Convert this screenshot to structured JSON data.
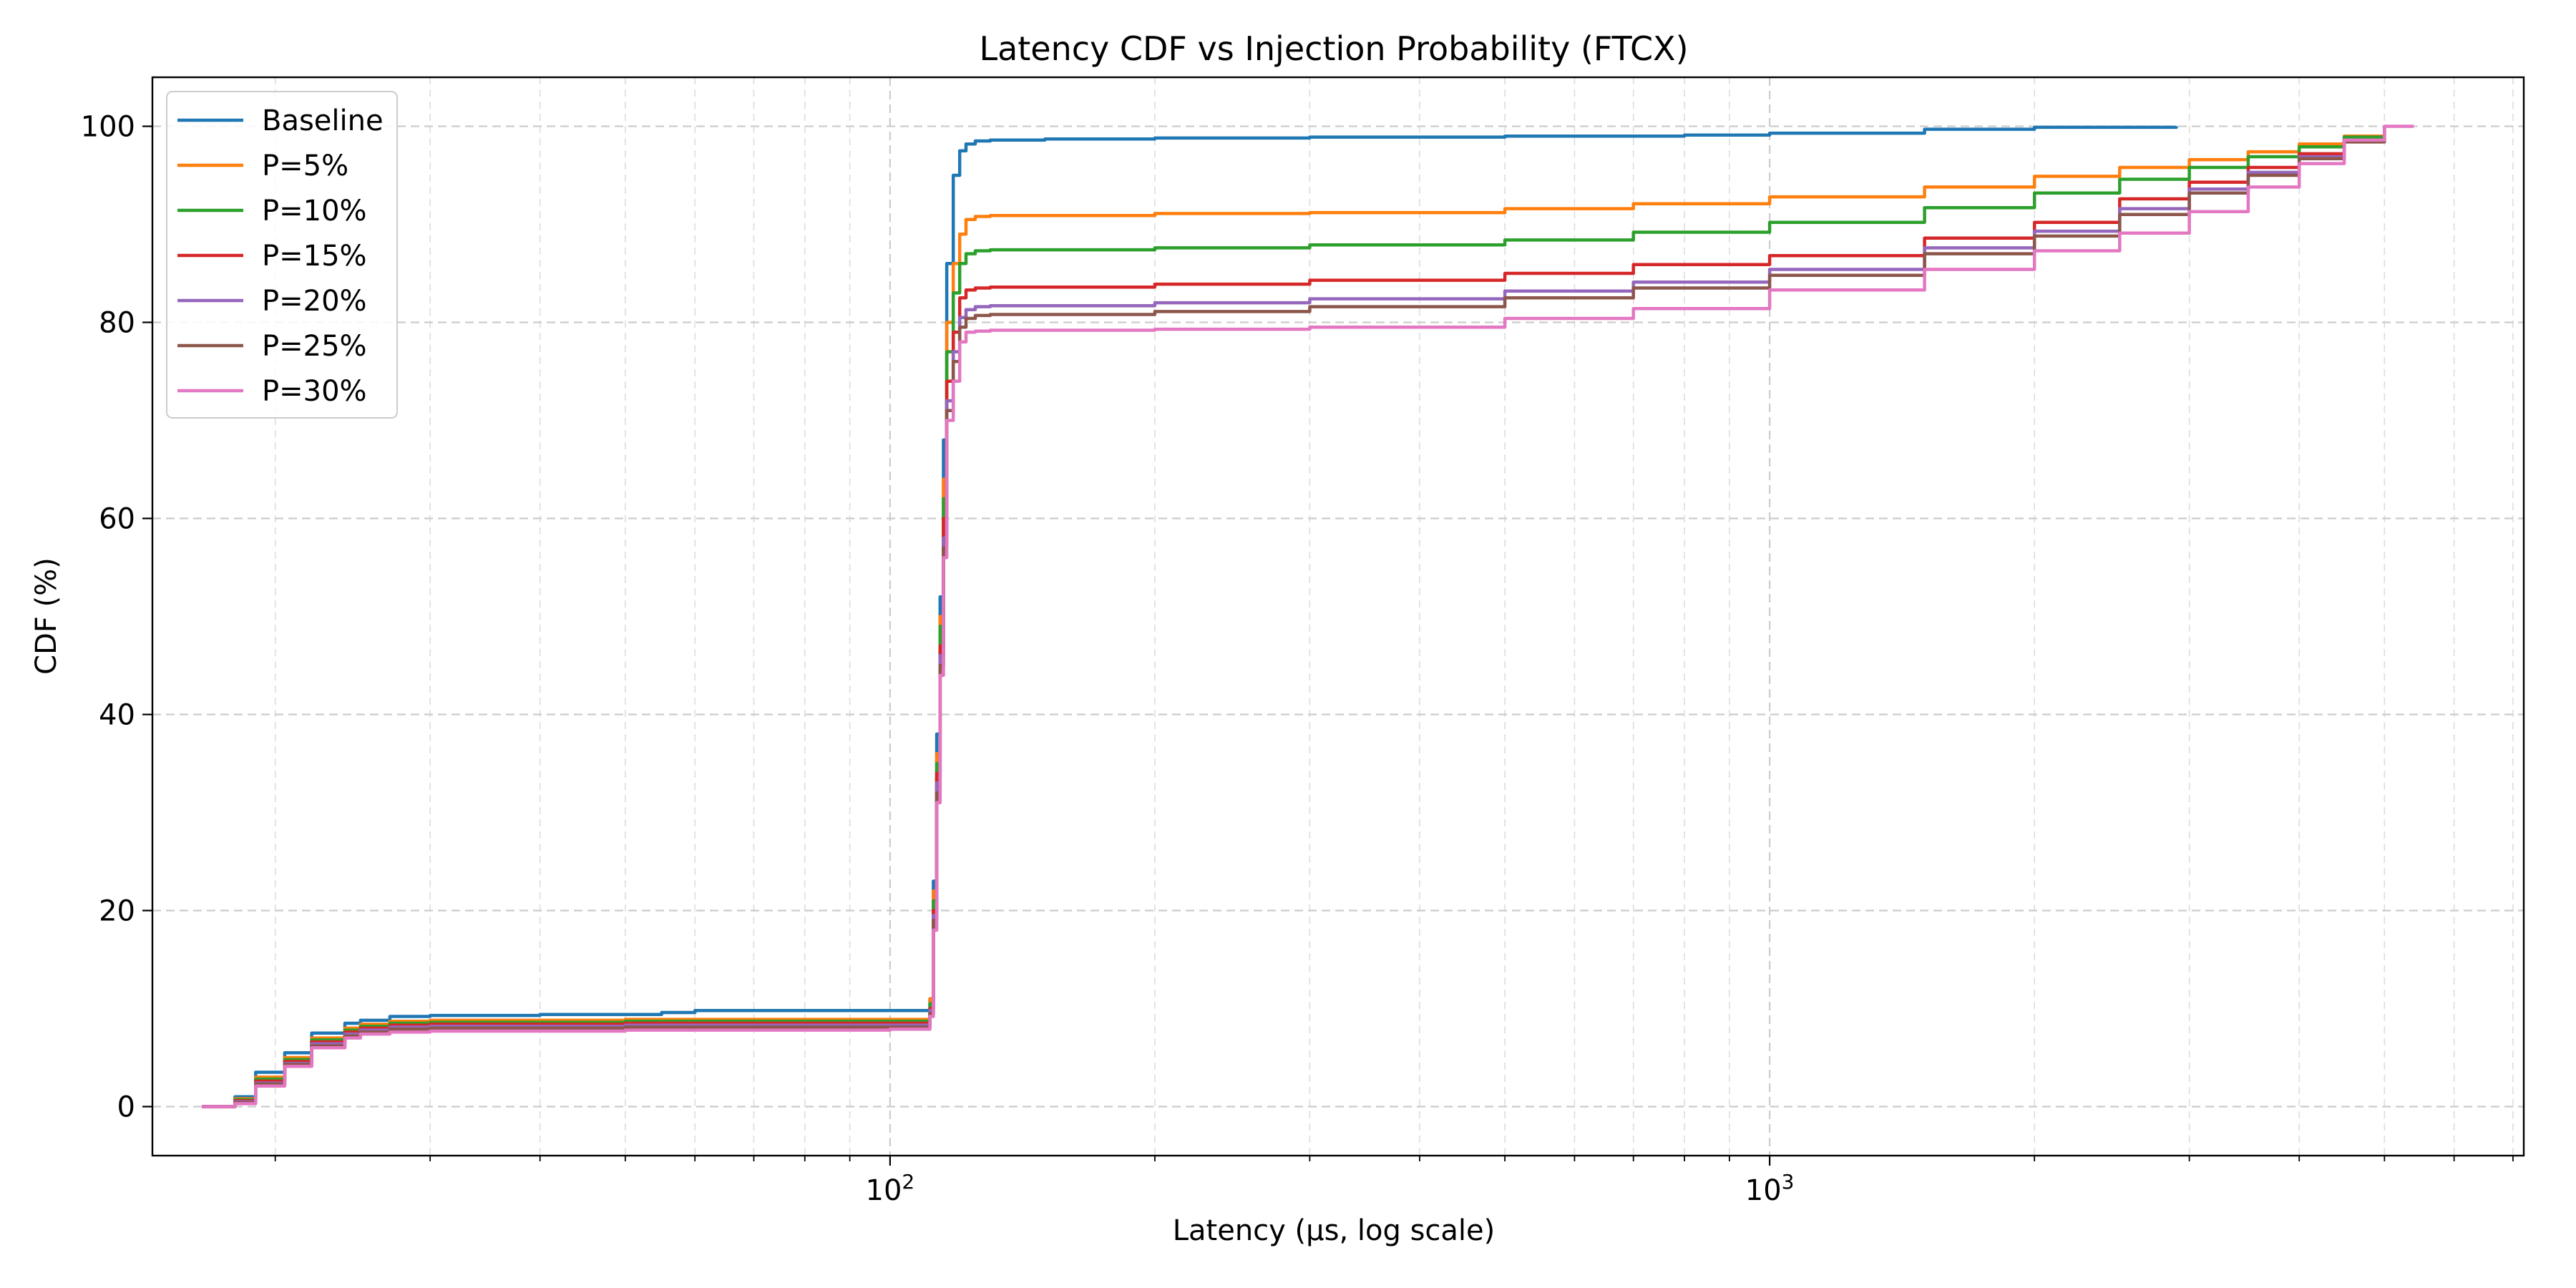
{
  "chart_data": {
    "type": "line",
    "title": "Latency CDF vs Injection Probability (FTCX)",
    "xlabel": "Latency (µs, log scale)",
    "ylabel": "CDF (%)",
    "x_scale": "log",
    "xlim": [
      14.5,
      7200
    ],
    "ylim": [
      -5,
      105
    ],
    "x_ticks": [
      {
        "value": 100,
        "base": "10",
        "exp": "2"
      },
      {
        "value": 1000,
        "base": "10",
        "exp": "3"
      }
    ],
    "y_ticks": [
      0,
      20,
      40,
      60,
      80,
      100
    ],
    "grid": "both (major and minor), dashed",
    "legend_position": "top-left",
    "series": [
      {
        "name": "Baseline",
        "color": "#1f77b4",
        "x": [
          16.5,
          17.5,
          18,
          18.5,
          19,
          20,
          20.5,
          21.5,
          22,
          23,
          24,
          25,
          27,
          30,
          40,
          55,
          60,
          100,
          110,
          111,
          112,
          113,
          114,
          115,
          116,
          118,
          120,
          122,
          125,
          130,
          150,
          200,
          300,
          500,
          800,
          1000,
          1500,
          2000,
          2900
        ],
        "y": [
          0,
          0,
          1,
          1,
          3.5,
          3.5,
          5.5,
          5.5,
          7.5,
          7.5,
          8.5,
          8.8,
          9.2,
          9.3,
          9.4,
          9.6,
          9.8,
          9.8,
          9.8,
          11,
          23,
          38,
          52,
          68,
          86,
          95,
          97.5,
          98.2,
          98.5,
          98.6,
          98.7,
          98.8,
          98.9,
          99,
          99.1,
          99.3,
          99.7,
          99.9,
          100
        ]
      },
      {
        "name": "P=5%",
        "color": "#ff7f0e",
        "x": [
          16.5,
          17.5,
          18,
          18.5,
          19,
          20,
          20.5,
          21.5,
          22,
          23,
          24,
          25,
          27,
          30,
          50,
          100,
          110,
          111,
          112,
          113,
          114,
          115,
          116,
          118,
          120,
          122,
          125,
          130,
          200,
          300,
          500,
          700,
          1000,
          1500,
          2000,
          2500,
          3000,
          3500,
          4000,
          4500,
          5000
        ],
        "y": [
          0,
          0,
          0.8,
          0.8,
          3,
          3,
          5,
          5,
          7,
          7,
          8,
          8.4,
          8.7,
          8.8,
          8.9,
          8.9,
          8.9,
          11,
          22,
          36,
          50,
          64,
          80,
          86,
          89,
          90.5,
          90.8,
          90.9,
          91.1,
          91.2,
          91.6,
          92.1,
          92.8,
          93.8,
          94.9,
          95.8,
          96.6,
          97.4,
          98.2,
          99,
          100
        ]
      },
      {
        "name": "P=10%",
        "color": "#2ca02c",
        "x": [
          16.5,
          17.5,
          18,
          18.5,
          19,
          20,
          20.5,
          21.5,
          22,
          23,
          24,
          25,
          27,
          30,
          50,
          100,
          110,
          111,
          112,
          113,
          114,
          115,
          116,
          118,
          120,
          122,
          125,
          130,
          200,
          300,
          500,
          700,
          1000,
          1500,
          2000,
          2500,
          3000,
          3500,
          4000,
          4500,
          5000
        ],
        "y": [
          0,
          0,
          0.7,
          0.7,
          2.8,
          2.8,
          4.8,
          4.8,
          6.8,
          6.8,
          7.8,
          8.2,
          8.5,
          8.6,
          8.7,
          8.7,
          8.7,
          10.5,
          21,
          35,
          49,
          62,
          77,
          83,
          86,
          87,
          87.3,
          87.4,
          87.6,
          87.9,
          88.4,
          89.2,
          90.2,
          91.7,
          93.2,
          94.6,
          95.8,
          96.9,
          97.9,
          98.9,
          100
        ]
      },
      {
        "name": "P=15%",
        "color": "#d62728",
        "x": [
          16.5,
          17.5,
          18,
          18.5,
          19,
          20,
          20.5,
          21.5,
          22,
          23,
          24,
          25,
          27,
          30,
          50,
          100,
          110,
          111,
          112,
          113,
          114,
          115,
          116,
          118,
          120,
          122,
          125,
          130,
          200,
          300,
          500,
          700,
          1000,
          1500,
          2000,
          2500,
          3000,
          3500,
          4000,
          4500,
          5000
        ],
        "y": [
          0,
          0,
          0.6,
          0.6,
          2.6,
          2.6,
          4.6,
          4.6,
          6.6,
          6.6,
          7.6,
          8,
          8.3,
          8.4,
          8.5,
          8.5,
          8.5,
          10,
          20,
          34,
          47,
          60,
          74,
          79,
          82.5,
          83.3,
          83.5,
          83.6,
          83.9,
          84.3,
          85,
          85.9,
          86.8,
          88.6,
          90.2,
          92.6,
          94.3,
          95.8,
          97.2,
          98.6,
          100
        ]
      },
      {
        "name": "P=20%",
        "color": "#9467bd",
        "x": [
          16.5,
          17.5,
          18,
          18.5,
          19,
          20,
          20.5,
          21.5,
          22,
          23,
          24,
          25,
          27,
          30,
          50,
          100,
          110,
          111,
          112,
          113,
          114,
          115,
          116,
          118,
          120,
          122,
          125,
          130,
          200,
          300,
          500,
          700,
          1000,
          1500,
          2000,
          2500,
          3000,
          3500,
          4000,
          4500,
          5000
        ],
        "y": [
          0,
          0,
          0.5,
          0.5,
          2.4,
          2.4,
          4.4,
          4.4,
          6.4,
          6.4,
          7.4,
          7.8,
          8.1,
          8.2,
          8.3,
          8.3,
          8.3,
          9.8,
          19.5,
          33,
          46,
          58,
          72,
          77,
          80.5,
          81.3,
          81.6,
          81.7,
          82,
          82.4,
          83.2,
          84.1,
          85.4,
          87.6,
          89.3,
          91.6,
          93.6,
          95.3,
          96.9,
          98.5,
          100
        ]
      },
      {
        "name": "P=25%",
        "color": "#8c564b",
        "x": [
          16.5,
          17.5,
          18,
          18.5,
          19,
          20,
          20.5,
          21.5,
          22,
          23,
          24,
          25,
          27,
          30,
          50,
          100,
          110,
          111,
          112,
          113,
          114,
          115,
          116,
          118,
          120,
          122,
          125,
          130,
          200,
          300,
          500,
          700,
          1000,
          1500,
          2000,
          2500,
          3000,
          3500,
          4000,
          4500,
          5000
        ],
        "y": [
          0,
          0,
          0.4,
          0.4,
          2.3,
          2.3,
          4.3,
          4.3,
          6.2,
          6.2,
          7.2,
          7.6,
          7.9,
          8,
          8.1,
          8.1,
          8.1,
          9.5,
          19,
          32,
          45,
          57,
          71,
          76,
          79.5,
          80.4,
          80.7,
          80.8,
          81.1,
          81.6,
          82.5,
          83.5,
          84.8,
          87,
          88.8,
          91,
          93.2,
          95,
          96.7,
          98.4,
          100
        ]
      },
      {
        "name": "P=30%",
        "color": "#e377c2",
        "x": [
          16.5,
          17.5,
          18,
          18.5,
          19,
          20,
          20.5,
          21.5,
          22,
          23,
          24,
          25,
          27,
          30,
          50,
          100,
          110,
          111,
          112,
          113,
          114,
          115,
          116,
          118,
          120,
          122,
          125,
          130,
          200,
          300,
          500,
          700,
          1000,
          1500,
          2000,
          2500,
          3000,
          3500,
          4000,
          4500,
          5000,
          5400
        ],
        "y": [
          0,
          0,
          0.3,
          0.3,
          2.1,
          2.1,
          4.1,
          4.1,
          6,
          6,
          7,
          7.4,
          7.6,
          7.7,
          7.8,
          7.9,
          7.9,
          9.2,
          18,
          31,
          44,
          56,
          70,
          74,
          78,
          79,
          79.1,
          79.2,
          79.3,
          79.5,
          80.4,
          81.4,
          83.3,
          85.4,
          87.3,
          89.1,
          91.3,
          93.8,
          96.2,
          98.6,
          100,
          100
        ]
      }
    ]
  }
}
